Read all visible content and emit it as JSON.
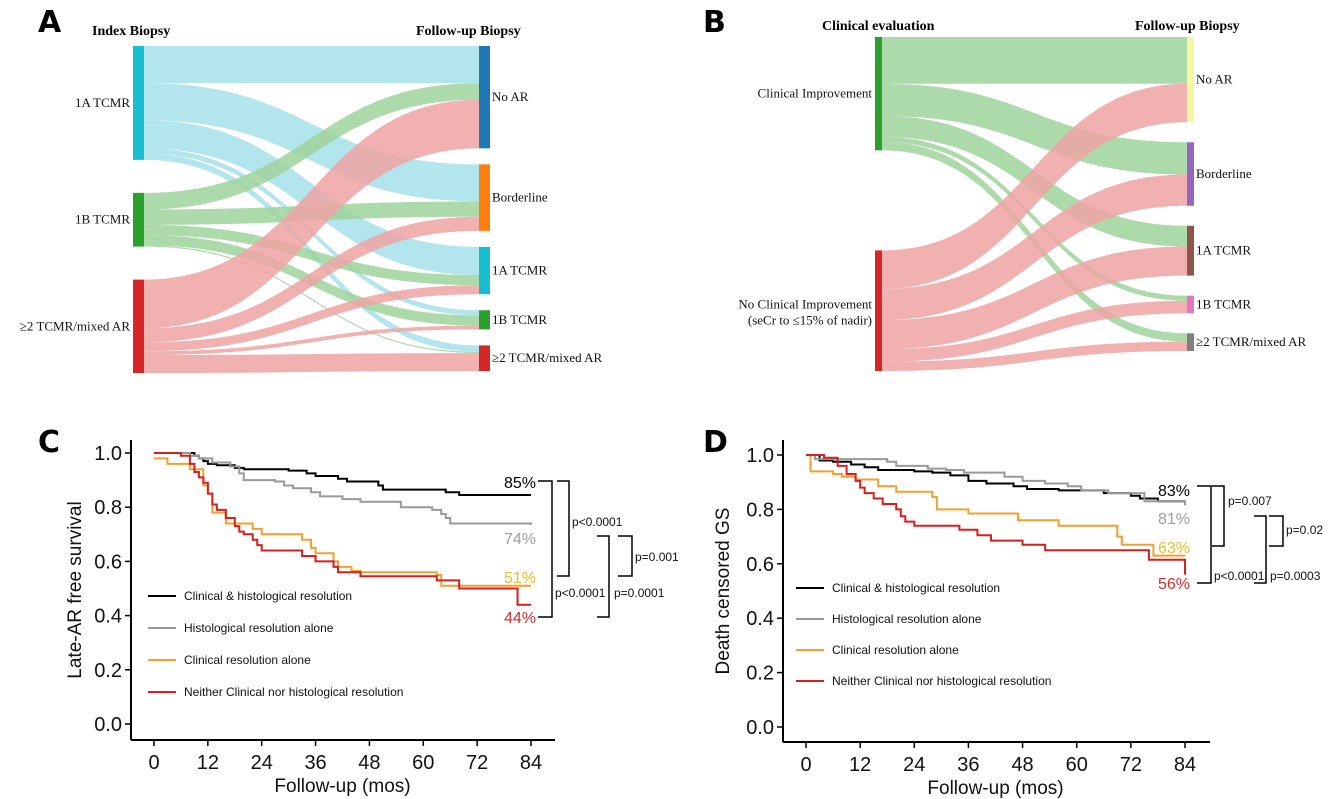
{
  "panels": {
    "A": {
      "letter": "A"
    },
    "B": {
      "letter": "B"
    },
    "C": {
      "letter": "C"
    },
    "D": {
      "letter": "D"
    }
  },
  "chart_data": [
    {
      "id": "A",
      "type": "sankey",
      "left_header": "Index Biopsy",
      "right_header": "Follow-up Biopsy",
      "left_nodes": [
        {
          "label": "1A TCMR",
          "color": "#17becf",
          "flow_color": "#a6e1ea"
        },
        {
          "label": "1B TCMR",
          "color": "#2ca02c",
          "flow_color": "#9fd49c"
        },
        {
          "label": "≥2 TCMR/mixed AR",
          "color": "#d62728",
          "flow_color": "#eea3a3"
        }
      ],
      "right_nodes": [
        {
          "label": "No AR",
          "color": "#1f77b4"
        },
        {
          "label": "Borderline",
          "color": "#ff7f0e"
        },
        {
          "label": "1A TCMR",
          "color": "#17becf"
        },
        {
          "label": "1B TCMR",
          "color": "#2ca02c"
        },
        {
          "label": "≥2 TCMR/mixed AR",
          "color": "#d62728"
        }
      ],
      "flows": [
        {
          "from": 0,
          "to": 0,
          "value": 29
        },
        {
          "from": 0,
          "to": 1,
          "value": 29
        },
        {
          "from": 0,
          "to": 2,
          "value": 22
        },
        {
          "from": 0,
          "to": 3,
          "value": 4
        },
        {
          "from": 0,
          "to": 4,
          "value": 5
        },
        {
          "from": 1,
          "to": 0,
          "value": 13
        },
        {
          "from": 1,
          "to": 1,
          "value": 12
        },
        {
          "from": 1,
          "to": 2,
          "value": 8
        },
        {
          "from": 1,
          "to": 3,
          "value": 8
        },
        {
          "from": 1,
          "to": 4,
          "value": 1
        },
        {
          "from": 2,
          "to": 0,
          "value": 38
        },
        {
          "from": 2,
          "to": 1,
          "value": 11
        },
        {
          "from": 2,
          "to": 2,
          "value": 7
        },
        {
          "from": 2,
          "to": 3,
          "value": 3
        },
        {
          "from": 2,
          "to": 4,
          "value": 14
        }
      ]
    },
    {
      "id": "B",
      "type": "sankey",
      "left_header": "Clinical evaluation",
      "right_header": "Follow-up Biopsy",
      "left_nodes": [
        {
          "label": "Clinical Improvement",
          "color": "#2ca02c",
          "flow_color": "#9fd49c"
        },
        {
          "label": "No Clinical Improvement",
          "label2": "(seCr to ≤15% of nadir)",
          "color": "#d62728",
          "flow_color": "#eea3a3"
        }
      ],
      "right_nodes": [
        {
          "label": "No AR",
          "color": "#f2f7a0"
        },
        {
          "label": "Borderline",
          "color": "#9467bd"
        },
        {
          "label": "1A TCMR",
          "color": "#8c564b"
        },
        {
          "label": "1B TCMR",
          "color": "#e377c2"
        },
        {
          "label": "≥2 TCMR/mixed AR",
          "color": "#7f7f7f"
        }
      ],
      "flows": [
        {
          "from": 0,
          "to": 0,
          "value": 45
        },
        {
          "from": 0,
          "to": 1,
          "value": 31
        },
        {
          "from": 0,
          "to": 2,
          "value": 20
        },
        {
          "from": 0,
          "to": 3,
          "value": 5
        },
        {
          "from": 0,
          "to": 4,
          "value": 8
        },
        {
          "from": 1,
          "to": 0,
          "value": 37
        },
        {
          "from": 1,
          "to": 1,
          "value": 30
        },
        {
          "from": 1,
          "to": 2,
          "value": 28
        },
        {
          "from": 1,
          "to": 3,
          "value": 12
        },
        {
          "from": 1,
          "to": 4,
          "value": 9
        }
      ]
    },
    {
      "id": "C",
      "type": "line",
      "subtype": "kaplan-meier",
      "xlabel": "Follow-up (mos)",
      "ylabel": "Late-AR free survival",
      "xlim": [
        0,
        84
      ],
      "ylim": [
        0,
        1.0
      ],
      "xticks": [
        "0",
        "12",
        "24",
        "36",
        "48",
        "60",
        "72",
        "84"
      ],
      "yticks": [
        "0.0",
        "0.2",
        "0.4",
        "0.6",
        "0.8",
        "1.0"
      ],
      "legend_position": "lower-left",
      "series": [
        {
          "name": "Clinical & histological resolution",
          "color": "#000000",
          "end_label": "85%",
          "label_color": "#000000",
          "steps": [
            [
              0,
              1.0
            ],
            [
              9,
              0.99
            ],
            [
              10,
              0.98
            ],
            [
              11,
              0.97
            ],
            [
              12,
              0.96
            ],
            [
              14,
              0.955
            ],
            [
              18,
              0.945
            ],
            [
              20,
              0.94
            ],
            [
              30,
              0.935
            ],
            [
              34,
              0.925
            ],
            [
              36,
              0.915
            ],
            [
              41,
              0.905
            ],
            [
              43,
              0.895
            ],
            [
              50,
              0.88
            ],
            [
              51,
              0.865
            ],
            [
              65,
              0.855
            ],
            [
              68,
              0.845
            ],
            [
              84,
              0.845
            ]
          ]
        },
        {
          "name": "Histological resolution alone",
          "color": "#999999",
          "end_label": "74%",
          "label_color": "#a0a0a0",
          "steps": [
            [
              0,
              1.0
            ],
            [
              8,
              0.99
            ],
            [
              10,
              0.98
            ],
            [
              13,
              0.965
            ],
            [
              17,
              0.95
            ],
            [
              19,
              0.925
            ],
            [
              20,
              0.9
            ],
            [
              27,
              0.895
            ],
            [
              29,
              0.88
            ],
            [
              31,
              0.87
            ],
            [
              35,
              0.855
            ],
            [
              37,
              0.84
            ],
            [
              42,
              0.83
            ],
            [
              46,
              0.82
            ],
            [
              55,
              0.8
            ],
            [
              62,
              0.79
            ],
            [
              64,
              0.775
            ],
            [
              65,
              0.76
            ],
            [
              66,
              0.74
            ],
            [
              84,
              0.735
            ]
          ]
        },
        {
          "name": "Clinical resolution alone",
          "color": "#f0a030",
          "end_label": "51%",
          "label_color": "#e8c030",
          "steps": [
            [
              0,
              0.98
            ],
            [
              3,
              0.96
            ],
            [
              8,
              0.94
            ],
            [
              11,
              0.88
            ],
            [
              12,
              0.85
            ],
            [
              13,
              0.78
            ],
            [
              16,
              0.74
            ],
            [
              20,
              0.74
            ],
            [
              22,
              0.72
            ],
            [
              24,
              0.7
            ],
            [
              33,
              0.68
            ],
            [
              35,
              0.65
            ],
            [
              36,
              0.63
            ],
            [
              40,
              0.6
            ],
            [
              41,
              0.58
            ],
            [
              44,
              0.565
            ],
            [
              46,
              0.56
            ],
            [
              63,
              0.55
            ],
            [
              64,
              0.51
            ],
            [
              84,
              0.51
            ]
          ]
        },
        {
          "name": "Neither Clinical nor histological resolution",
          "color": "#d42020",
          "end_label": "44%",
          "label_color": "#c83030",
          "steps": [
            [
              0,
              1.0
            ],
            [
              6,
              0.99
            ],
            [
              8,
              0.96
            ],
            [
              9,
              0.93
            ],
            [
              10,
              0.91
            ],
            [
              11,
              0.89
            ],
            [
              12,
              0.85
            ],
            [
              13,
              0.81
            ],
            [
              14,
              0.79
            ],
            [
              16,
              0.76
            ],
            [
              18,
              0.73
            ],
            [
              19,
              0.71
            ],
            [
              20,
              0.7
            ],
            [
              22,
              0.68
            ],
            [
              23,
              0.66
            ],
            [
              24,
              0.64
            ],
            [
              33,
              0.62
            ],
            [
              36,
              0.6
            ],
            [
              40,
              0.58
            ],
            [
              41,
              0.56
            ],
            [
              46,
              0.545
            ],
            [
              63,
              0.53
            ],
            [
              68,
              0.5
            ],
            [
              80,
              0.5
            ],
            [
              81,
              0.44
            ],
            [
              84,
              0.44
            ]
          ]
        }
      ],
      "comparisons": [
        {
          "label": "p<0.0001",
          "between": [
            "85%",
            "51%"
          ]
        },
        {
          "label": "p<0.0001",
          "between": [
            "85%",
            "44%"
          ]
        },
        {
          "label": "p=0.001",
          "between": [
            "74%",
            "51%"
          ]
        },
        {
          "label": "p=0.0001",
          "between": [
            "74%",
            "44%"
          ]
        }
      ]
    },
    {
      "id": "D",
      "type": "line",
      "subtype": "kaplan-meier",
      "xlabel": "Follow-up (mos)",
      "ylabel": "Death censored GS",
      "xlim": [
        0,
        84
      ],
      "ylim": [
        0,
        1.0
      ],
      "xticks": [
        "0",
        "12",
        "24",
        "36",
        "48",
        "60",
        "72",
        "84"
      ],
      "yticks": [
        "0.0",
        "0.2",
        "0.4",
        "0.6",
        "0.8",
        "1.0"
      ],
      "legend_position": "lower-left",
      "series": [
        {
          "name": "Clinical & histological resolution",
          "color": "#000000",
          "end_label": "83%",
          "label_color": "#000000",
          "steps": [
            [
              0,
              1.0
            ],
            [
              3,
              0.98
            ],
            [
              6,
              0.975
            ],
            [
              10,
              0.965
            ],
            [
              13,
              0.955
            ],
            [
              16,
              0.945
            ],
            [
              24,
              0.94
            ],
            [
              28,
              0.935
            ],
            [
              32,
              0.925
            ],
            [
              36,
              0.905
            ],
            [
              40,
              0.895
            ],
            [
              46,
              0.885
            ],
            [
              49,
              0.875
            ],
            [
              56,
              0.87
            ],
            [
              66,
              0.86
            ],
            [
              72,
              0.85
            ],
            [
              74,
              0.84
            ],
            [
              78,
              0.83
            ],
            [
              84,
              0.83
            ]
          ]
        },
        {
          "name": "Histological resolution alone",
          "color": "#999999",
          "end_label": "81%",
          "label_color": "#a0a0a0",
          "steps": [
            [
              0,
              1.0
            ],
            [
              2,
              0.985
            ],
            [
              18,
              0.975
            ],
            [
              20,
              0.96
            ],
            [
              27,
              0.95
            ],
            [
              31,
              0.945
            ],
            [
              35,
              0.935
            ],
            [
              44,
              0.92
            ],
            [
              48,
              0.905
            ],
            [
              53,
              0.895
            ],
            [
              58,
              0.885
            ],
            [
              61,
              0.87
            ],
            [
              67,
              0.86
            ],
            [
              75,
              0.83
            ],
            [
              84,
              0.815
            ]
          ]
        },
        {
          "name": "Clinical resolution alone",
          "color": "#f0a030",
          "end_label": "63%",
          "label_color": "#e8c030",
          "steps": [
            [
              0,
              1.0
            ],
            [
              1,
              0.94
            ],
            [
              6,
              0.93
            ],
            [
              8,
              0.92
            ],
            [
              11,
              0.91
            ],
            [
              16,
              0.885
            ],
            [
              20,
              0.865
            ],
            [
              28,
              0.845
            ],
            [
              29,
              0.8
            ],
            [
              36,
              0.785
            ],
            [
              47,
              0.76
            ],
            [
              56,
              0.74
            ],
            [
              69,
              0.7
            ],
            [
              70,
              0.67
            ],
            [
              77,
              0.63
            ],
            [
              84,
              0.63
            ]
          ]
        },
        {
          "name": "Neither Clinical nor histological resolution",
          "color": "#d42020",
          "end_label": "56%",
          "label_color": "#c83030",
          "steps": [
            [
              0,
              1.0
            ],
            [
              4,
              0.99
            ],
            [
              7,
              0.96
            ],
            [
              9,
              0.93
            ],
            [
              11,
              0.905
            ],
            [
              12,
              0.88
            ],
            [
              13,
              0.86
            ],
            [
              15,
              0.84
            ],
            [
              17,
              0.82
            ],
            [
              20,
              0.8
            ],
            [
              21,
              0.775
            ],
            [
              22,
              0.755
            ],
            [
              24,
              0.74
            ],
            [
              34,
              0.725
            ],
            [
              38,
              0.705
            ],
            [
              41,
              0.685
            ],
            [
              48,
              0.67
            ],
            [
              53,
              0.65
            ],
            [
              76,
              0.615
            ],
            [
              84,
              0.56
            ]
          ]
        }
      ],
      "comparisons": [
        {
          "label": "p=0.007",
          "between": [
            "83%",
            "63%"
          ]
        },
        {
          "label": "p<0.0001",
          "between": [
            "83%",
            "56%"
          ]
        },
        {
          "label": "p=0.02",
          "between": [
            "81%",
            "63%"
          ]
        },
        {
          "label": "p=0.0003",
          "between": [
            "81%",
            "56%"
          ]
        }
      ]
    }
  ]
}
